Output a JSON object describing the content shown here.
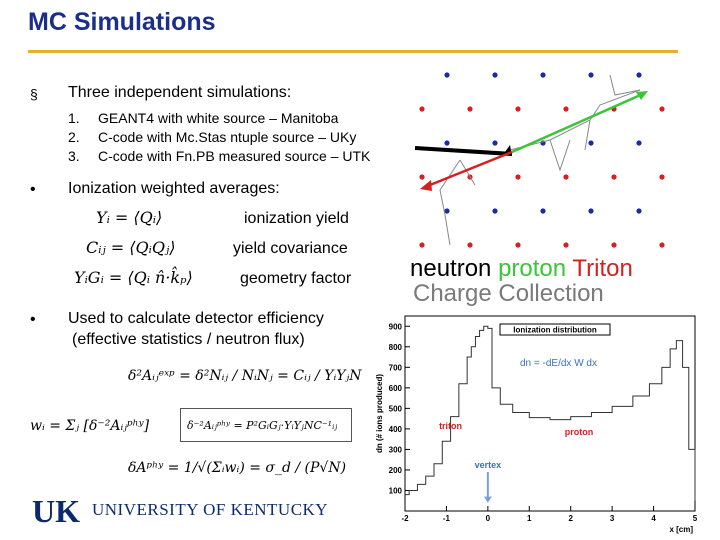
{
  "title": "MC Simulations",
  "bullets": {
    "b1_marker": "§",
    "b1": "Three independent simulations:",
    "items": [
      {
        "num": "1.",
        "text": "GEANT4 with white source  – Manitoba"
      },
      {
        "num": "2.",
        "text": "C-code with Mc.Stas ntuple source – UKy"
      },
      {
        "num": "3.",
        "text": "C-code with Fn.PB measured source – UTK"
      }
    ],
    "b2_marker": "•",
    "b2": "Ionization weighted averages:",
    "b3_marker": "•",
    "b3_line1": "Used to calculate detector efficiency",
    "b3_line2": "(effective statistics / neutron flux)"
  },
  "averages": {
    "eq1": "Yᵢ = ⟨Qᵢ⟩",
    "eq1_label": "ionization yield",
    "eq2": "Cᵢⱼ = ⟨QᵢQⱼ⟩",
    "eq2_label": "yield covariance",
    "eq3": "YᵢGᵢ = ⟨Qᵢ n̂·k̂ₚ⟩",
    "eq3_label": "geometry factor"
  },
  "efficiency": {
    "eq4": "δ²Aᵢⱼᵉˣᵖ = δ²Nᵢⱼ / NᵢNⱼ = Cᵢⱼ / YᵢYⱼN",
    "eq5_left": "wᵢ = Σⱼ [δ⁻²Aᵢⱼᵖʰʸ]",
    "eq5_box": "δ⁻²Aᵢⱼᵖʰʸ = P²GᵢGⱼ·YᵢYⱼNC⁻¹ᵢⱼ",
    "eq6": "δAᵖʰʸ = 1/√(Σᵢwᵢ) = σ_d / (P√N)"
  },
  "logo": {
    "text": "UNIVERSITY OF KENTUCKY",
    "mark": "UK"
  },
  "particles": {
    "neutron": "neutron",
    "proton": "proton",
    "triton": "Triton",
    "charge": "Charge Collection"
  },
  "colors": {
    "title": "#1a2e8a",
    "rule": "#e8b030",
    "neutron": "#000000",
    "proton": "#39c639",
    "triton": "#d42020",
    "dot_blue": "#1b2aa8",
    "dot_red": "#d42020"
  },
  "chart_data": {
    "type": "line",
    "title": "Ionization distribution",
    "xlabel": "x [cm]",
    "ylabel": "dn  (# ions produced)",
    "xlim": [
      -2,
      5
    ],
    "ylim": [
      0,
      950
    ],
    "xticks": [
      "-2",
      "-1",
      "0",
      "1",
      "2",
      "3",
      "4",
      "5"
    ],
    "yticks": [
      "100",
      "200",
      "300",
      "400",
      "500",
      "600",
      "700",
      "800",
      "900"
    ],
    "formula": "dn = -dE/dx W dx",
    "annotations": [
      {
        "text": "triton",
        "x": -0.9,
        "y": 400
      },
      {
        "text": "proton",
        "x": 2.2,
        "y": 370
      },
      {
        "text": "vertex",
        "x": 0,
        "y": 210
      }
    ],
    "series": [
      {
        "name": "ionization",
        "x": [
          -2,
          -1.9,
          -1.7,
          -1.5,
          -1.3,
          -1.1,
          -0.9,
          -0.7,
          -0.5,
          -0.4,
          -0.3,
          -0.2,
          -0.1,
          0,
          0.1,
          0.3,
          0.6,
          1,
          1.5,
          2,
          2.5,
          3,
          3.5,
          3.9,
          4.2,
          4.4,
          4.55,
          4.7,
          4.85,
          5
        ],
        "y": [
          80,
          100,
          130,
          170,
          230,
          340,
          460,
          620,
          750,
          800,
          850,
          880,
          900,
          890,
          600,
          520,
          480,
          455,
          445,
          460,
          480,
          510,
          560,
          620,
          700,
          790,
          830,
          700,
          300,
          50
        ]
      }
    ]
  }
}
